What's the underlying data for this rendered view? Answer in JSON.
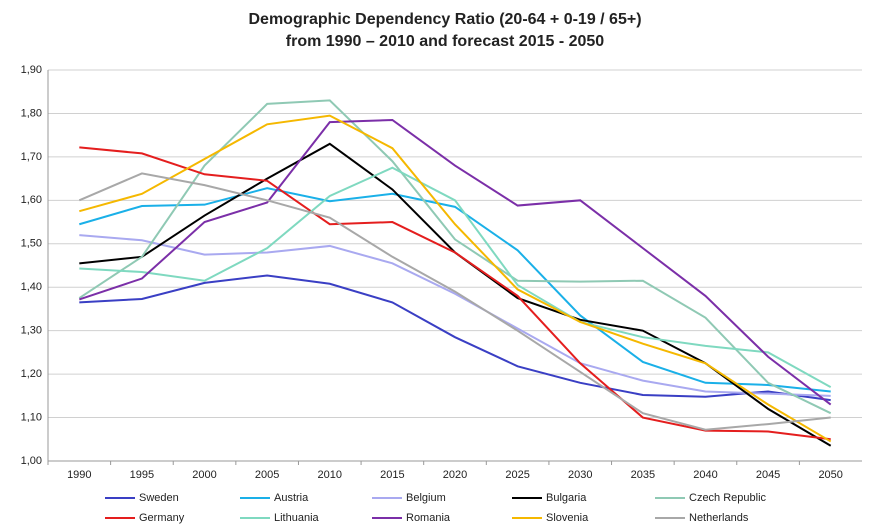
{
  "chart_data": {
    "type": "line",
    "title": "Demographic Dependency Ratio (20-64 + 0-19 / 65+)",
    "subtitle": "from 1990 – 2010 and forecast 2015 - 2050",
    "categories": [
      "1990",
      "1995",
      "2000",
      "2005",
      "2010",
      "2015",
      "2020",
      "2025",
      "2030",
      "2035",
      "2040",
      "2045",
      "2050"
    ],
    "series": [
      {
        "name": "Sweden",
        "color": "#3a3fc4",
        "values": [
          1.365,
          1.373,
          1.41,
          1.427,
          1.408,
          1.365,
          1.285,
          1.218,
          1.18,
          1.152,
          1.148,
          1.16,
          1.14
        ]
      },
      {
        "name": "Austria",
        "color": "#1ab0e8",
        "values": [
          1.545,
          1.587,
          1.59,
          1.628,
          1.598,
          1.615,
          1.585,
          1.485,
          1.335,
          1.228,
          1.18,
          1.175,
          1.16
        ]
      },
      {
        "name": "Belgium",
        "color": "#a9a9f0",
        "values": [
          1.52,
          1.508,
          1.475,
          1.48,
          1.495,
          1.455,
          1.385,
          1.305,
          1.225,
          1.185,
          1.16,
          1.155,
          1.15
        ]
      },
      {
        "name": "Bulgaria",
        "color": "#000000",
        "values": [
          1.455,
          1.47,
          1.565,
          1.65,
          1.73,
          1.625,
          1.48,
          1.375,
          1.325,
          1.3,
          1.225,
          1.12,
          1.035
        ]
      },
      {
        "name": "Czech Republic",
        "color": "#8fc9b4",
        "values": [
          1.375,
          1.47,
          1.68,
          1.822,
          1.83,
          1.69,
          1.51,
          1.415,
          1.413,
          1.415,
          1.33,
          1.18,
          1.11
        ]
      },
      {
        "name": "Germany",
        "color": "#e41e1e",
        "values": [
          1.722,
          1.708,
          1.66,
          1.645,
          1.545,
          1.55,
          1.48,
          1.38,
          1.225,
          1.1,
          1.07,
          1.068,
          1.05
        ]
      },
      {
        "name": "Lithuania",
        "color": "#7fd9c0",
        "values": [
          1.443,
          1.435,
          1.415,
          1.49,
          1.61,
          1.675,
          1.6,
          1.405,
          1.32,
          1.285,
          1.265,
          1.25,
          1.17
        ]
      },
      {
        "name": "Romania",
        "color": "#7b2fa8",
        "values": [
          1.372,
          1.42,
          1.55,
          1.595,
          1.78,
          1.785,
          1.68,
          1.588,
          1.6,
          1.49,
          1.38,
          1.24,
          1.13
        ]
      },
      {
        "name": "Slovenia",
        "color": "#f5b800",
        "values": [
          1.575,
          1.615,
          1.695,
          1.775,
          1.795,
          1.72,
          1.545,
          1.395,
          1.32,
          1.27,
          1.225,
          1.13,
          1.045
        ]
      },
      {
        "name": "Netherlands",
        "color": "#a8a8a8",
        "values": [
          1.6,
          1.662,
          1.635,
          1.6,
          1.56,
          1.47,
          1.39,
          1.3,
          1.205,
          1.11,
          1.072,
          1.085,
          1.1
        ]
      }
    ],
    "ylim": [
      1.0,
      1.9
    ],
    "yticks": [
      {
        "value": 1.0,
        "label": "1,00"
      },
      {
        "value": 1.1,
        "label": "1,10"
      },
      {
        "value": 1.2,
        "label": "1,20"
      },
      {
        "value": 1.3,
        "label": "1,30"
      },
      {
        "value": 1.4,
        "label": "1,40"
      },
      {
        "value": 1.5,
        "label": "1,50"
      },
      {
        "value": 1.6,
        "label": "1,60"
      },
      {
        "value": 1.7,
        "label": "1,70"
      },
      {
        "value": 1.8,
        "label": "1,80"
      },
      {
        "value": 1.9,
        "label": "1,90"
      }
    ],
    "grid": true
  }
}
